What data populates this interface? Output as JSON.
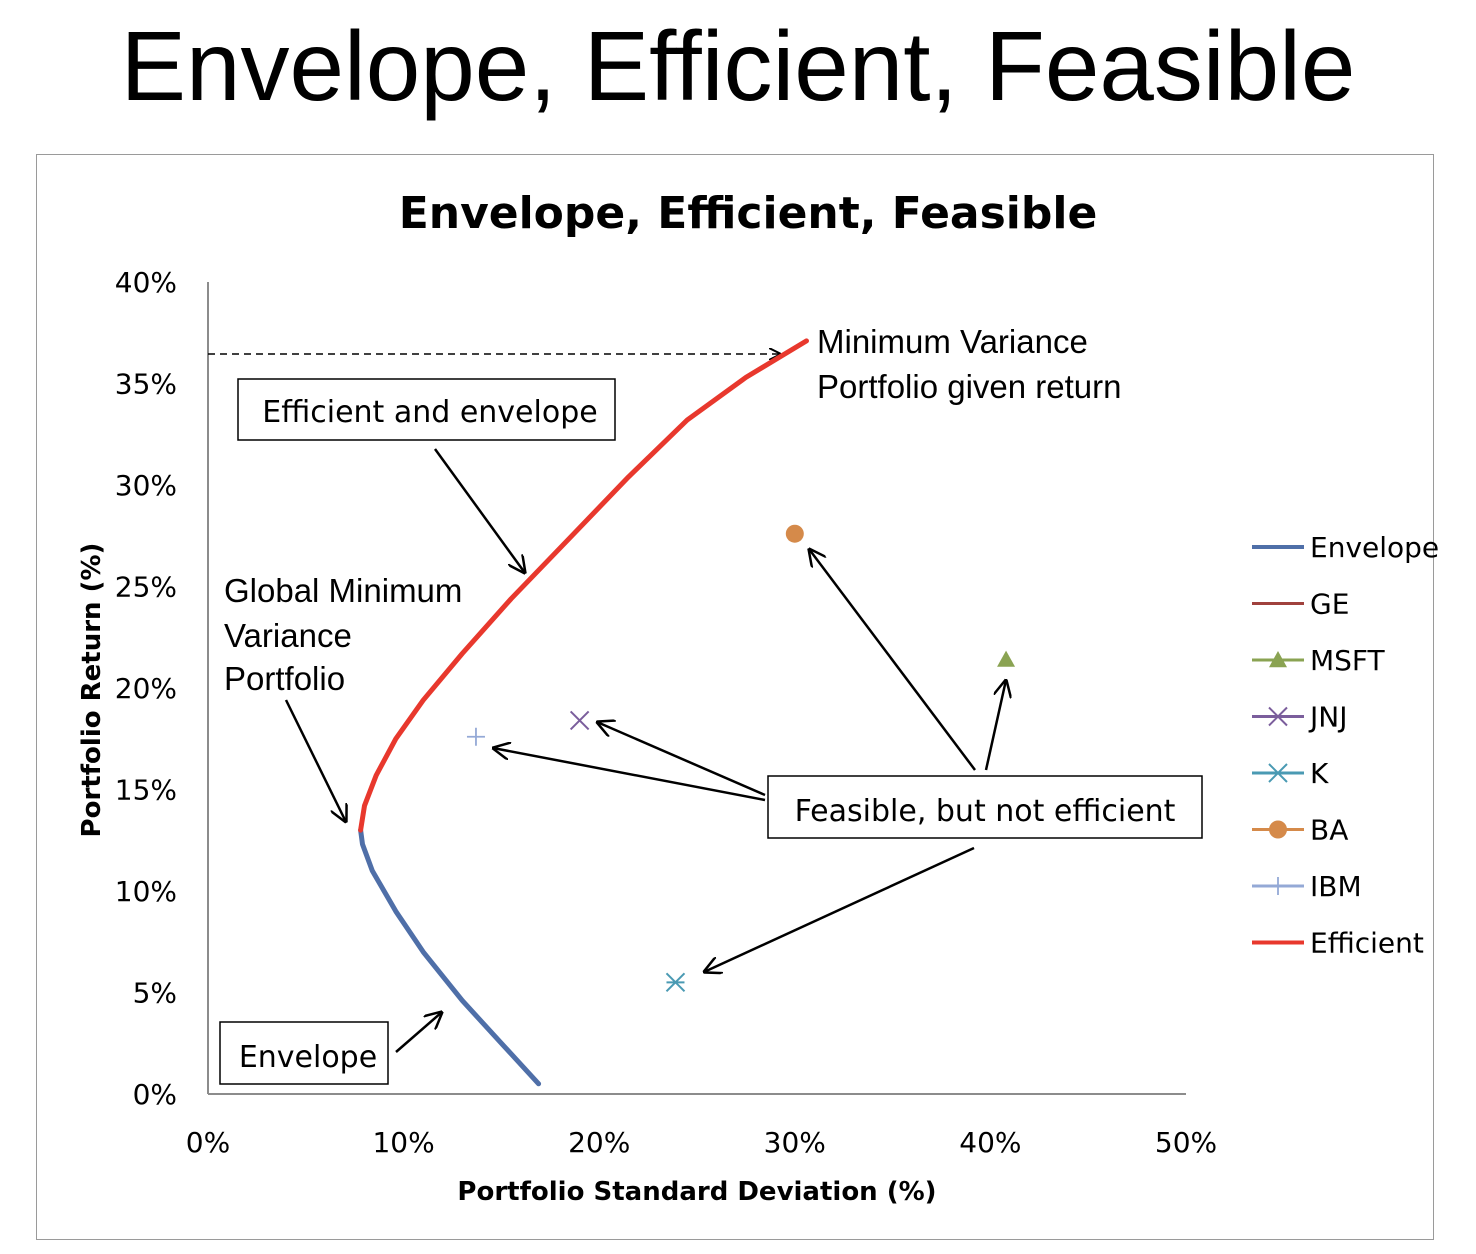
{
  "slide": {
    "title": "Envelope, Efficient, Feasible"
  },
  "chart_data": {
    "type": "scatter",
    "title": "Envelope, Efficient, Feasible",
    "xlabel": "Portfolio Standard Deviation (%)",
    "ylabel": "Portfolio Return (%)",
    "xlim": [
      0,
      50
    ],
    "ylim": [
      0,
      40
    ],
    "x_ticks": [
      "0%",
      "10%",
      "20%",
      "30%",
      "40%",
      "50%"
    ],
    "y_ticks": [
      "0%",
      "5%",
      "10%",
      "15%",
      "20%",
      "25%",
      "30%",
      "35%",
      "40%"
    ],
    "grid": false,
    "legend_position": "right",
    "series": [
      {
        "name": "Envelope",
        "kind": "line",
        "color": "#4f6fa8",
        "points": [
          [
            16.9,
            0.5
          ],
          [
            15.0,
            2.5
          ],
          [
            13.0,
            4.6
          ],
          [
            11.0,
            7.0
          ],
          [
            9.6,
            9.0
          ],
          [
            8.4,
            11.0
          ],
          [
            7.9,
            12.3
          ],
          [
            7.8,
            13.0
          ]
        ]
      },
      {
        "name": "GE",
        "kind": "marker",
        "marker": "none",
        "color": "#a0413d",
        "points": []
      },
      {
        "name": "MSFT",
        "kind": "marker",
        "marker": "triangle",
        "color": "#8aa352",
        "points": [
          [
            40.8,
            21.4
          ]
        ]
      },
      {
        "name": "JNJ",
        "kind": "marker",
        "marker": "x",
        "color": "#7b5e9c",
        "points": [
          [
            19.0,
            18.4
          ]
        ]
      },
      {
        "name": "K",
        "kind": "marker",
        "marker": "asterisk",
        "color": "#4a9ab3",
        "points": [
          [
            23.9,
            5.5
          ]
        ]
      },
      {
        "name": "BA",
        "kind": "marker",
        "marker": "circle",
        "color": "#d58a4a",
        "points": [
          [
            30.0,
            27.6
          ]
        ]
      },
      {
        "name": "IBM",
        "kind": "marker",
        "marker": "plus",
        "color": "#94a9d6",
        "points": [
          [
            13.7,
            17.6
          ]
        ]
      },
      {
        "name": "Efficient",
        "kind": "line",
        "color": "#e8382d",
        "points": [
          [
            7.8,
            13.0
          ],
          [
            8.0,
            14.2
          ],
          [
            8.6,
            15.7
          ],
          [
            9.6,
            17.5
          ],
          [
            11.0,
            19.4
          ],
          [
            13.0,
            21.7
          ],
          [
            15.5,
            24.4
          ],
          [
            18.5,
            27.4
          ],
          [
            21.5,
            30.4
          ],
          [
            24.5,
            33.2
          ],
          [
            27.5,
            35.3
          ],
          [
            30.6,
            37.1
          ]
        ]
      }
    ],
    "annotations": [
      {
        "type": "text",
        "lines": [
          "Minimum Variance",
          "Portfolio given return"
        ]
      },
      {
        "type": "boxed",
        "text": "Efficient and envelope"
      },
      {
        "type": "text",
        "lines": [
          "Global Minimum",
          "Variance",
          "Portfolio"
        ]
      },
      {
        "type": "boxed",
        "text": "Feasible, but not efficient"
      },
      {
        "type": "boxed",
        "text": "Envelope"
      }
    ]
  }
}
